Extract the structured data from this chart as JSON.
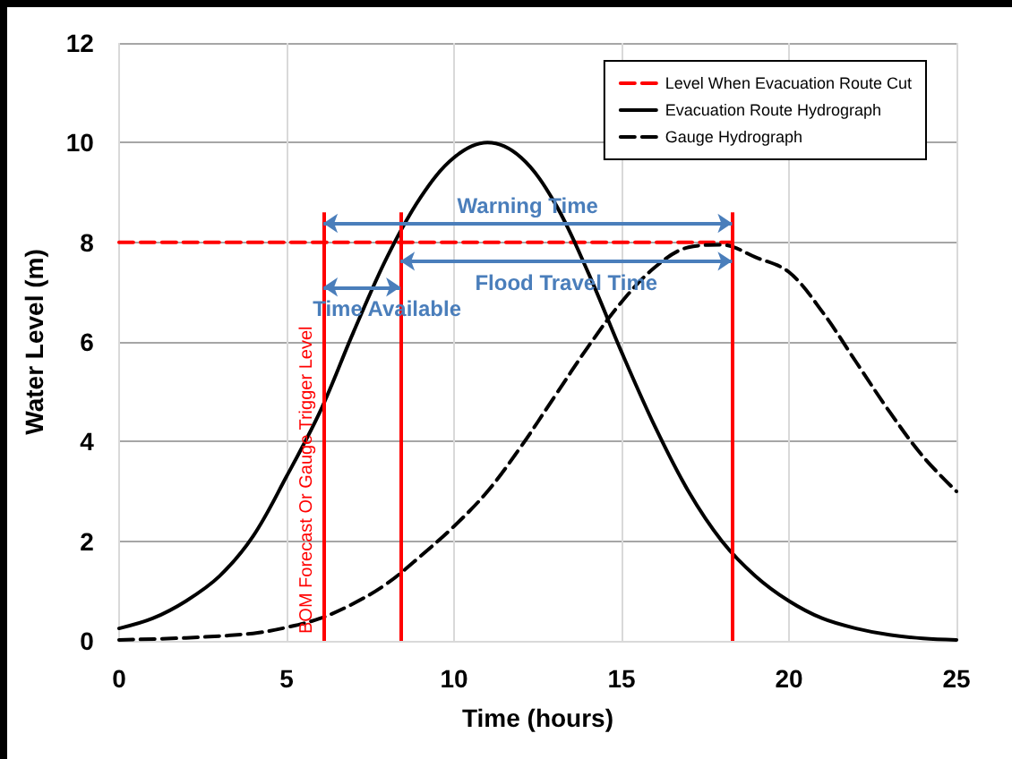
{
  "chart_data": {
    "type": "line",
    "xlabel": "Time (hours)",
    "ylabel": "Water Level (m)",
    "xlim": [
      0,
      25
    ],
    "xticks": [
      0,
      5,
      10,
      15,
      20,
      25
    ],
    "ylim": [
      0,
      12
    ],
    "yticks": [
      0,
      2,
      4,
      6,
      8,
      10,
      12
    ],
    "grid": true,
    "legend": "top right",
    "marker": "none",
    "series": [
      {
        "name": "Level When Evacuation Route Cut",
        "color": "#ff0000",
        "line_style": "dashed",
        "x": [
          0,
          18.3
        ],
        "values": [
          8,
          8
        ]
      },
      {
        "name": "Evacuation Route Hydrograph",
        "color": "#000000",
        "line_style": "solid",
        "x": [
          0,
          1,
          2,
          3,
          4,
          5,
          6,
          7,
          8,
          9,
          10,
          11,
          12,
          13,
          14,
          15,
          16,
          17,
          18,
          19,
          20,
          21,
          22,
          23,
          24,
          25
        ],
        "values": [
          0.25,
          0.45,
          0.8,
          1.3,
          2.1,
          3.3,
          4.6,
          6.2,
          7.7,
          8.9,
          9.7,
          10,
          9.7,
          8.8,
          7.4,
          5.8,
          4.3,
          3.0,
          2.0,
          1.3,
          0.8,
          0.45,
          0.25,
          0.12,
          0.05,
          0.02
        ]
      },
      {
        "name": "Gauge Hydrograph",
        "color": "#000000",
        "line_style": "dashed",
        "x": [
          0,
          2,
          4,
          5,
          6,
          7,
          8,
          9,
          10,
          11,
          12,
          13,
          14,
          15,
          16,
          17,
          18,
          19,
          20,
          21,
          22,
          23,
          24,
          25
        ],
        "values": [
          0.02,
          0.06,
          0.15,
          0.27,
          0.45,
          0.75,
          1.15,
          1.7,
          2.3,
          3.0,
          3.9,
          4.9,
          5.9,
          6.8,
          7.5,
          7.9,
          7.95,
          7.7,
          7.4,
          6.6,
          5.6,
          4.6,
          3.7,
          3.0
        ]
      }
    ],
    "ref_lines": [
      {
        "axis": "x",
        "value": 6.1,
        "label": "BOM Forecast Or Gauge Trigger Level",
        "color": "#ff0000"
      },
      {
        "axis": "x",
        "value": 8.4,
        "label": null,
        "color": "#ff0000"
      },
      {
        "axis": "x",
        "value": 18.3,
        "label": null,
        "color": "#ff0000"
      }
    ],
    "annotations": [
      "Warning Time",
      "Flood Travel Time",
      "Time Available"
    ]
  }
}
